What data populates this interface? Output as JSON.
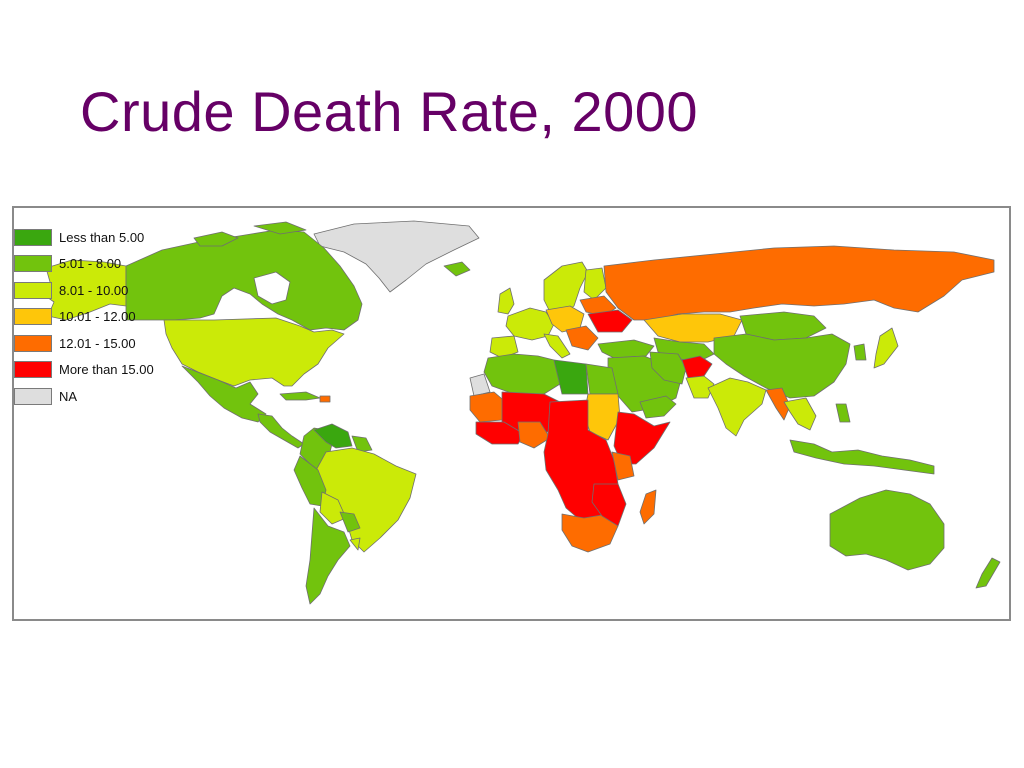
{
  "slide": {
    "title": "Crude Death Rate, 2000",
    "title_color": "#660066"
  },
  "map": {
    "ocean_color": "#ffffff",
    "border_color": "#6f6f6f",
    "legend": {
      "classes": [
        {
          "key": "lt5",
          "label": "Less than 5.00",
          "color": "#3aa70f"
        },
        {
          "key": "5to8",
          "label": "5.01 - 8.00",
          "color": "#72c30d"
        },
        {
          "key": "8to10",
          "label": "8.01 - 10.00",
          "color": "#cbea08"
        },
        {
          "key": "10to12",
          "label": "10.01 - 12.00",
          "color": "#fec60a"
        },
        {
          "key": "12to15",
          "label": "12.01 - 15.00",
          "color": "#fe6c00"
        },
        {
          "key": "gt15",
          "label": "More than 15.00",
          "color": "#ff0000"
        },
        {
          "key": "na",
          "label": "NA",
          "color": "#dedede"
        }
      ]
    }
  }
}
